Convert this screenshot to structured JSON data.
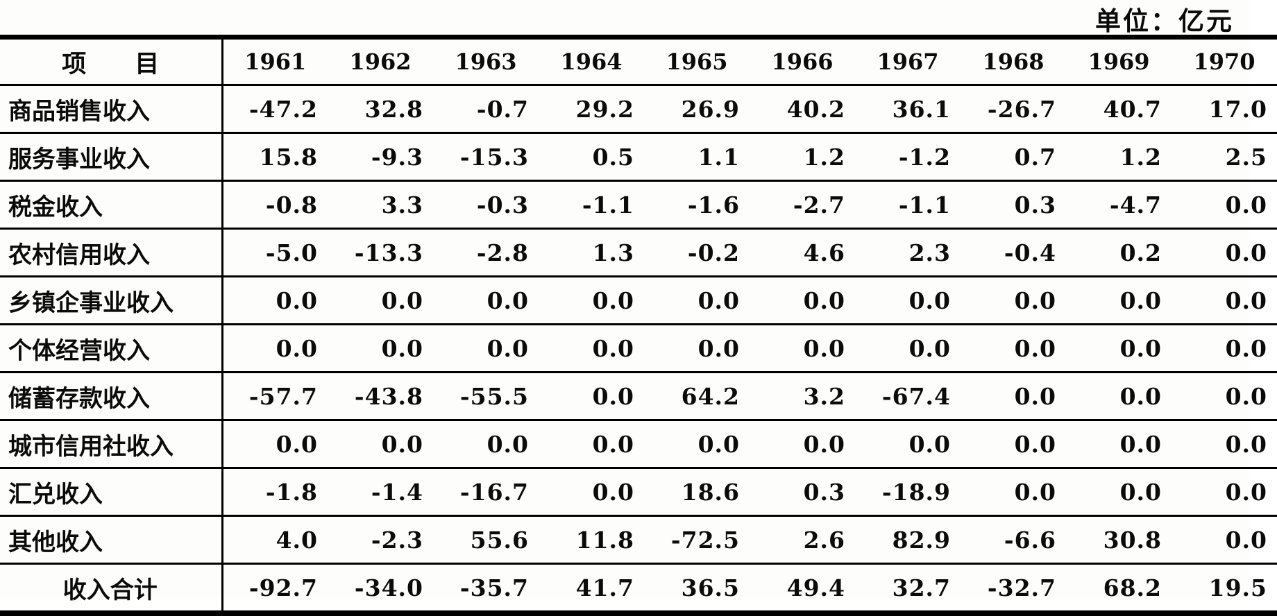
{
  "unit_label": "单位：亿元",
  "table": {
    "header_label": "项　　目",
    "columns": [
      "1961",
      "1962",
      "1963",
      "1964",
      "1965",
      "1966",
      "1967",
      "1968",
      "1969",
      "1970"
    ],
    "rows": [
      {
        "label": "商品销售收入",
        "values": [
          "-47.2",
          "32.8",
          "-0.7",
          "29.2",
          "26.9",
          "40.2",
          "36.1",
          "-26.7",
          "40.7",
          "17.0"
        ]
      },
      {
        "label": "服务事业收入",
        "values": [
          "15.8",
          "-9.3",
          "-15.3",
          "0.5",
          "1.1",
          "1.2",
          "-1.2",
          "0.7",
          "1.2",
          "2.5"
        ]
      },
      {
        "label": "税金收入",
        "values": [
          "-0.8",
          "3.3",
          "-0.3",
          "-1.1",
          "-1.6",
          "-2.7",
          "-1.1",
          "0.3",
          "-4.7",
          "0.0"
        ]
      },
      {
        "label": "农村信用收入",
        "values": [
          "-5.0",
          "-13.3",
          "-2.8",
          "1.3",
          "-0.2",
          "4.6",
          "2.3",
          "-0.4",
          "0.2",
          "0.0"
        ]
      },
      {
        "label": "乡镇企事业收入",
        "values": [
          "0.0",
          "0.0",
          "0.0",
          "0.0",
          "0.0",
          "0.0",
          "0.0",
          "0.0",
          "0.0",
          "0.0"
        ]
      },
      {
        "label": "个体经营收入",
        "values": [
          "0.0",
          "0.0",
          "0.0",
          "0.0",
          "0.0",
          "0.0",
          "0.0",
          "0.0",
          "0.0",
          "0.0"
        ]
      },
      {
        "label": "储蓄存款收入",
        "values": [
          "-57.7",
          "-43.8",
          "-55.5",
          "0.0",
          "64.2",
          "3.2",
          "-67.4",
          "0.0",
          "0.0",
          "0.0"
        ]
      },
      {
        "label": "城市信用社收入",
        "values": [
          "0.0",
          "0.0",
          "0.0",
          "0.0",
          "0.0",
          "0.0",
          "0.0",
          "0.0",
          "0.0",
          "0.0"
        ]
      },
      {
        "label": "汇兑收入",
        "values": [
          "-1.8",
          "-1.4",
          "-16.7",
          "0.0",
          "18.6",
          "0.3",
          "-18.9",
          "0.0",
          "0.0",
          "0.0"
        ]
      },
      {
        "label": "其他收入",
        "values": [
          "4.0",
          "-2.3",
          "55.6",
          "11.8",
          "-72.5",
          "2.6",
          "82.9",
          "-6.6",
          "30.8",
          "0.0"
        ]
      },
      {
        "label": "收入合计",
        "is_total": true,
        "values": [
          "-92.7",
          "-34.0",
          "-35.7",
          "41.7",
          "36.5",
          "49.4",
          "32.7",
          "-32.7",
          "68.2",
          "19.5"
        ]
      }
    ]
  }
}
